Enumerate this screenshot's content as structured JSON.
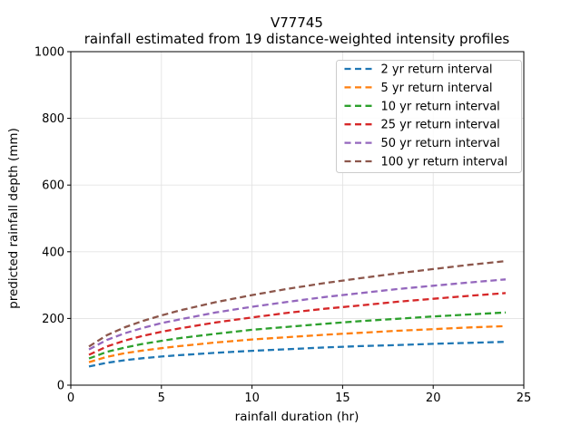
{
  "title_line1": "V77745",
  "title_line2": "rainfall estimated from 19 distance-weighted intensity profiles",
  "chart_data": {
    "type": "line",
    "title": "V77745",
    "subtitle": "rainfall estimated from 19 distance-weighted intensity profiles",
    "xlabel": "rainfall duration (hr)",
    "ylabel": "predicted rainfall depth (mm)",
    "xlim": [
      0,
      25
    ],
    "ylim": [
      0,
      1000
    ],
    "xticks": [
      0,
      5,
      10,
      15,
      20,
      25
    ],
    "yticks": [
      0,
      200,
      400,
      600,
      800,
      1000
    ],
    "grid": true,
    "grid_color": "#e3e3e3",
    "line_style": "dashed",
    "legend_position": "upper right",
    "x": [
      1,
      2,
      3,
      4,
      5,
      6,
      8,
      10,
      12,
      14,
      16,
      18,
      20,
      22,
      24
    ],
    "series": [
      {
        "name": "2 yr return interval",
        "color": "#1f77b4",
        "values": [
          56,
          67,
          75,
          81,
          86,
          90,
          97,
          103,
          108,
          113,
          117,
          120,
          124,
          127,
          130
        ]
      },
      {
        "name": "5 yr return interval",
        "color": "#ff7f0e",
        "values": [
          69,
          85,
          96,
          104,
          111,
          117,
          128,
          137,
          144,
          151,
          157,
          163,
          168,
          173,
          177
        ]
      },
      {
        "name": "10 yr return interval",
        "color": "#2ca02c",
        "values": [
          80,
          100,
          113,
          124,
          133,
          141,
          154,
          166,
          175,
          184,
          192,
          199,
          206,
          212,
          218
        ]
      },
      {
        "name": "25 yr return interval",
        "color": "#d62728",
        "values": [
          91,
          116,
          134,
          148,
          160,
          170,
          188,
          203,
          217,
          229,
          239,
          250,
          259,
          268,
          276
        ]
      },
      {
        "name": "50 yr return interval",
        "color": "#9467bd",
        "values": [
          107,
          136,
          156,
          172,
          186,
          197,
          218,
          235,
          250,
          264,
          276,
          288,
          298,
          308,
          317
        ]
      },
      {
        "name": "100 yr return interval",
        "color": "#8c564b",
        "values": [
          116,
          150,
          174,
          193,
          209,
          224,
          249,
          270,
          289,
          306,
          321,
          335,
          348,
          361,
          372
        ]
      }
    ]
  }
}
